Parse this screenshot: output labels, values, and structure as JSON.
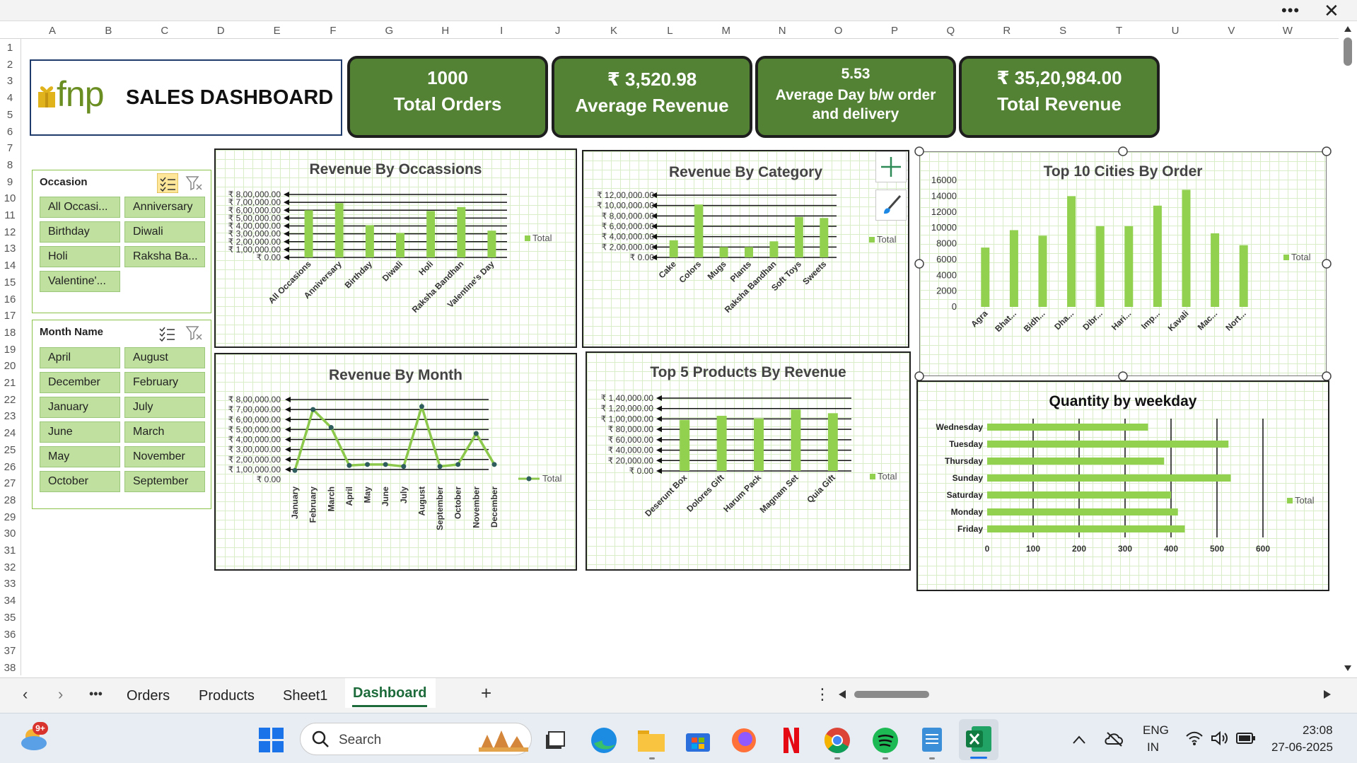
{
  "titlebar": {
    "more_icon": "ellipsis-icon",
    "close_icon": "close-icon"
  },
  "columns": [
    "A",
    "B",
    "C",
    "D",
    "E",
    "F",
    "G",
    "H",
    "I",
    "J",
    "K",
    "L",
    "M",
    "N",
    "O",
    "P",
    "Q",
    "R",
    "S",
    "T",
    "U",
    "V",
    "W"
  ],
  "rows": [
    "1",
    "2",
    "3",
    "4",
    "5",
    "6",
    "7",
    "8",
    "9",
    "10",
    "11",
    "12",
    "13",
    "14",
    "15",
    "16",
    "17",
    "18",
    "19",
    "20",
    "21",
    "22",
    "23",
    "24",
    "25",
    "26",
    "27",
    "28",
    "29",
    "30",
    "31",
    "32",
    "33",
    "34",
    "35",
    "36",
    "37",
    "38"
  ],
  "header": {
    "logo_text": "fnp",
    "title": "SALES DASHBOARD"
  },
  "kpis": [
    {
      "value": "1000",
      "label": "Total Orders"
    },
    {
      "value": "₹ 3,520.98",
      "label": "Average Revenue"
    },
    {
      "value": "5.53",
      "label": "Average Day b/w order and delivery"
    },
    {
      "value": "₹ 35,20,984.00",
      "label": "Total Revenue"
    }
  ],
  "slicer_occasion": {
    "title": "Occasion",
    "items": [
      "All Occasi...",
      "Anniversary",
      "Birthday",
      "Diwali",
      "Holi",
      "Raksha Ba...",
      "Valentine'..."
    ]
  },
  "slicer_month": {
    "title": "Month Name",
    "items": [
      "April",
      "August",
      "December",
      "February",
      "January",
      "July",
      "June",
      "March",
      "May",
      "November",
      "October",
      "September"
    ]
  },
  "chart_data": [
    {
      "id": "occasion",
      "type": "bar",
      "title": "Revenue By Occassions",
      "categories": [
        "All Occasions",
        "Anniversary",
        "Birthday",
        "Diwali",
        "Holi",
        "Raksha Bandhan",
        "Valentine's Day"
      ],
      "series": [
        {
          "name": "Total",
          "values": [
            600000,
            690000,
            410000,
            310000,
            590000,
            640000,
            340000
          ]
        }
      ],
      "ylim": [
        0,
        800000
      ],
      "yticks": [
        "₹ 0.00",
        "₹ 1,00,000.00",
        "₹ 2,00,000.00",
        "₹ 3,00,000.00",
        "₹ 4,00,000.00",
        "₹ 5,00,000.00",
        "₹ 6,00,000.00",
        "₹ 7,00,000.00",
        "₹ 8,00,000.00"
      ],
      "legend": "right"
    },
    {
      "id": "category",
      "type": "bar",
      "title": "Revenue By Category",
      "categories": [
        "Cake",
        "Colors",
        "Mugs",
        "Plants",
        "Raksha Bandhan",
        "Soft Toys",
        "Sweets"
      ],
      "series": [
        {
          "name": "Total",
          "values": [
            330000,
            1020000,
            200000,
            200000,
            310000,
            780000,
            760000
          ]
        }
      ],
      "ylim": [
        0,
        1200000
      ],
      "yticks": [
        "₹ 0.00",
        "₹ 2,00,000.00",
        "₹ 4,00,000.00",
        "₹ 6,00,000.00",
        "₹ 8,00,000.00",
        "₹ 10,00,000.00",
        "₹ 12,00,000.00"
      ],
      "legend": "right"
    },
    {
      "id": "cities",
      "type": "bar",
      "title": "Top 10 Cities By Order",
      "categories": [
        "Agra",
        "Bhat...",
        "Bidh...",
        "Dha...",
        "Dibr...",
        "Hari...",
        "Imp...",
        "Kavali",
        "Mac...",
        "Nort..."
      ],
      "series": [
        {
          "name": "Total",
          "values": [
            7500,
            9700,
            9000,
            14000,
            10200,
            10200,
            12800,
            14800,
            9300,
            7800
          ]
        }
      ],
      "ylim": [
        0,
        16000
      ],
      "yticks": [
        "0",
        "2000",
        "4000",
        "6000",
        "8000",
        "10000",
        "12000",
        "14000",
        "16000"
      ],
      "legend": "right"
    },
    {
      "id": "month",
      "type": "line",
      "title": "Revenue By Month",
      "categories": [
        "January",
        "February",
        "March",
        "April",
        "May",
        "June",
        "July",
        "August",
        "September",
        "October",
        "November",
        "December"
      ],
      "series": [
        {
          "name": "Total",
          "values": [
            90000,
            700000,
            520000,
            140000,
            150000,
            150000,
            130000,
            730000,
            130000,
            150000,
            460000,
            150000
          ]
        }
      ],
      "ylim": [
        0,
        800000
      ],
      "yticks": [
        "₹ 0.00",
        "₹ 1,00,000.00",
        "₹ 2,00,000.00",
        "₹ 3,00,000.00",
        "₹ 4,00,000.00",
        "₹ 5,00,000.00",
        "₹ 6,00,000.00",
        "₹ 7,00,000.00",
        "₹ 8,00,000.00"
      ],
      "legend": "right"
    },
    {
      "id": "products",
      "type": "bar",
      "title": "Top 5 Products By Revenue",
      "categories": [
        "Deserunt Box",
        "Dolores Gift",
        "Harum Pack",
        "Magnam Set",
        "Quia Gift"
      ],
      "series": [
        {
          "name": "Total",
          "values": [
            98000,
            106000,
            101000,
            118000,
            111000
          ]
        }
      ],
      "ylim": [
        0,
        140000
      ],
      "yticks": [
        "₹ 0.00",
        "₹ 20,000.00",
        "₹ 40,000.00",
        "₹ 60,000.00",
        "₹ 80,000.00",
        "₹ 1,00,000.00",
        "₹ 1,20,000.00",
        "₹ 1,40,000.00"
      ],
      "legend": "right"
    },
    {
      "id": "weekday",
      "type": "bar",
      "orientation": "horizontal",
      "title": "Quantity by weekday",
      "categories": [
        "Wednesday",
        "Tuesday",
        "Thursday",
        "Sunday",
        "Saturday",
        "Monday",
        "Friday"
      ],
      "series": [
        {
          "name": "Total",
          "values": [
            350,
            525,
            385,
            530,
            400,
            415,
            430
          ]
        }
      ],
      "xlim": [
        0,
        600
      ],
      "xticks": [
        "0",
        "100",
        "200",
        "300",
        "400",
        "500",
        "600"
      ],
      "legend": "right"
    }
  ],
  "sheet_tabs": [
    "Orders",
    "Products",
    "Sheet1",
    "Dashboard"
  ],
  "active_sheet": "Dashboard",
  "taskbar": {
    "weather_badge": "9+",
    "search_placeholder": "Search",
    "lang_line1": "ENG",
    "lang_line2": "IN",
    "time": "23:08",
    "date": "27-06-2025"
  },
  "colors": {
    "kpi_green": "#548235",
    "bar_green": "#92d050",
    "line_green": "#8cc84b",
    "slicer_fill": "#bfe09e"
  }
}
